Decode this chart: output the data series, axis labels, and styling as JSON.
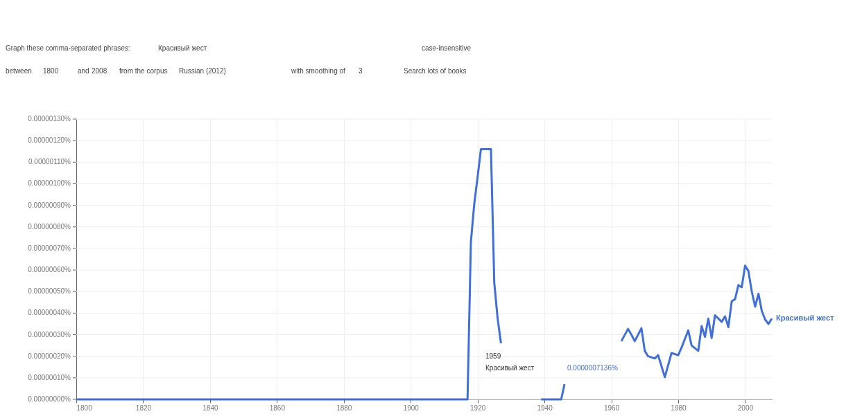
{
  "chart_data": {
    "type": "line",
    "annotations": [
      "Graph these comma-separated phrases:",
      "Красивый жест",
      "case-insensitive",
      "between",
      "1800",
      "and",
      "2008",
      "from the corpus",
      "Russian (2012)",
      "with smoothing of",
      "3",
      "Search lots of books",
      "1959",
      "Красивый жест",
      "0.0000007136%"
    ],
    "x": [
      1800,
      1917,
      1918,
      1919,
      1920,
      1921,
      1922,
      1924,
      1925,
      1926,
      1927,
      1928,
      1938,
      1939,
      1945,
      1946,
      1947,
      1962,
      1963,
      1965,
      1966,
      1967,
      1969,
      1970,
      1971,
      1973,
      1974,
      1976,
      1978,
      1980,
      1981,
      1983,
      1984,
      1986,
      1987,
      1988,
      1989,
      1990,
      1991,
      1993,
      1994,
      1995,
      1996,
      1997,
      1998,
      1999,
      2000,
      2001,
      2002,
      2003,
      2004,
      2005,
      2006,
      2007,
      2008
    ],
    "series": [
      {
        "name": "Красивый жест",
        "color": "#3f6fd8",
        "values": [
          0,
          0,
          7.3e-07,
          9.05e-07,
          1.03e-06,
          1.16e-06,
          1.16e-06,
          1.16e-06,
          5.4e-07,
          3.75e-07,
          2.6e-07,
          null,
          null,
          0,
          0,
          7e-08,
          null,
          null,
          2.7e-07,
          3.27e-07,
          3e-07,
          2.7e-07,
          3.3e-07,
          2.25e-07,
          2e-07,
          1.9e-07,
          2.05e-07,
          1.03e-07,
          2.15e-07,
          2.05e-07,
          2.4e-07,
          3.2e-07,
          2.5e-07,
          2.25e-07,
          3.4e-07,
          2.9e-07,
          3.75e-07,
          2.85e-07,
          3.9e-07,
          3.6e-07,
          3.85e-07,
          3.35e-07,
          4.55e-07,
          4.65e-07,
          5.3e-07,
          5.2e-07,
          6.2e-07,
          5.95e-07,
          5e-07,
          4.3e-07,
          4.9e-07,
          4.1e-07,
          3.7e-07,
          3.5e-07,
          3.75e-07
        ]
      }
    ],
    "xlim": [
      1800,
      2008
    ],
    "xticks": [
      1800,
      1820,
      1840,
      1860,
      1880,
      1900,
      1920,
      1940,
      1960,
      1980,
      2000
    ],
    "ylim": [
      0,
      1.3e-06
    ],
    "yticks": [
      {
        "value": 0,
        "label": "0.00000000%"
      },
      {
        "value": 1e-07,
        "label": "0.00000010%"
      },
      {
        "value": 2e-07,
        "label": "0.00000020%"
      },
      {
        "value": 3e-07,
        "label": "0.00000030%"
      },
      {
        "value": 4e-07,
        "label": "0.00000040%"
      },
      {
        "value": 5e-07,
        "label": "0.00000050%"
      },
      {
        "value": 6e-07,
        "label": "0.00000060%"
      },
      {
        "value": 7e-07,
        "label": "0.00000070%"
      },
      {
        "value": 8e-07,
        "label": "0.00000080%"
      },
      {
        "value": 9e-07,
        "label": "0.00000090%"
      },
      {
        "value": 1e-06,
        "label": "0.00000100%"
      },
      {
        "value": 1.1e-06,
        "label": "0.00000110%"
      },
      {
        "value": 1.2e-06,
        "label": "0.00000120%"
      },
      {
        "value": 1.3e-06,
        "label": "0.00000130%"
      }
    ],
    "grid": true,
    "legend": false,
    "marker": "none",
    "line_style": "solid"
  }
}
